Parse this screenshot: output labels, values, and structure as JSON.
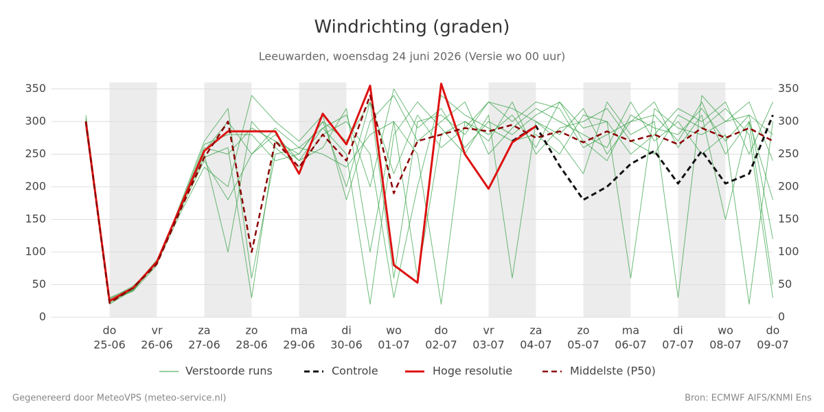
{
  "chart_data": {
    "type": "line",
    "title": "Windrichting (graden)",
    "subtitle": "Leeuwarden, woensdag 24 juni 2026 (Versie wo 00 uur)",
    "categories": [
      null,
      "25-06",
      null,
      "26-06",
      null,
      "27-06",
      null,
      "28-06",
      null,
      "29-06",
      null,
      "30-06",
      null,
      "01-07",
      null,
      "02-07",
      null,
      "03-07",
      null,
      "04-07",
      null,
      "05-07",
      null,
      "06-07",
      null,
      "07-07",
      null,
      "08-07",
      null,
      "09-07"
    ],
    "weekdays": [
      null,
      "do",
      null,
      "vr",
      null,
      "za",
      null,
      "zo",
      null,
      "ma",
      null,
      "di",
      null,
      "wo",
      null,
      "do",
      null,
      "vr",
      null,
      "za",
      null,
      "zo",
      null,
      "ma",
      null,
      "di",
      null,
      "wo",
      null,
      "do"
    ],
    "ylim": [
      0,
      360
    ],
    "yticks": [
      0,
      50,
      100,
      150,
      200,
      250,
      300,
      350
    ],
    "grid": true,
    "ensemble": {
      "name": "Verstoorde runs",
      "color": "#2e9e3e",
      "runs": [
        [
          300,
          20,
          42,
          85,
          170,
          260,
          250,
          290,
          270,
          250,
          300,
          200,
          330,
          60,
          300,
          310,
          280,
          330,
          320,
          300,
          280,
          320,
          250,
          300,
          330,
          260,
          310,
          150,
          300,
          50
        ],
        [
          290,
          30,
          45,
          88,
          165,
          240,
          180,
          250,
          280,
          240,
          260,
          320,
          100,
          300,
          250,
          20,
          300,
          280,
          310,
          260,
          330,
          290,
          300,
          250,
          280,
          320,
          300,
          330,
          250,
          330
        ],
        [
          310,
          25,
          40,
          80,
          175,
          270,
          320,
          60,
          250,
          260,
          290,
          250,
          20,
          280,
          330,
          290,
          250,
          310,
          60,
          300,
          270,
          220,
          330,
          280,
          300,
          30,
          340,
          300,
          310,
          120
        ],
        [
          295,
          28,
          48,
          82,
          160,
          230,
          200,
          340,
          300,
          270,
          310,
          180,
          300,
          340,
          270,
          300,
          330,
          250,
          290,
          320,
          300,
          280,
          260,
          330,
          270,
          300,
          250,
          280,
          20,
          300
        ],
        [
          305,
          22,
          44,
          86,
          168,
          250,
          100,
          300,
          260,
          230,
          280,
          300,
          250,
          30,
          200,
          340,
          310,
          290,
          270,
          280,
          250,
          310,
          300,
          60,
          320,
          290,
          280,
          300,
          330,
          240
        ],
        [
          300,
          26,
          46,
          84,
          172,
          265,
          280,
          280,
          240,
          250,
          300,
          270,
          330,
          220,
          310,
          260,
          290,
          330,
          300,
          330,
          320,
          260,
          280,
          300,
          310,
          270,
          330,
          250,
          300,
          180
        ],
        [
          298,
          24,
          43,
          83,
          166,
          255,
          300,
          250,
          290,
          260,
          250,
          230,
          280,
          300,
          60,
          280,
          300,
          270,
          330,
          250,
          290,
          300,
          320,
          270,
          250,
          310,
          290,
          320,
          280,
          30
        ],
        [
          302,
          27,
          41,
          87,
          170,
          245,
          260,
          30,
          270,
          240,
          290,
          310,
          200,
          350,
          290,
          320,
          260,
          300,
          280,
          310,
          330,
          270,
          240,
          310,
          290,
          280,
          320,
          270,
          310,
          280
        ]
      ]
    },
    "series": [
      {
        "name": "Controle",
        "color": "#111111",
        "dash": true,
        "width": 3,
        "values": [
          null,
          null,
          null,
          null,
          null,
          null,
          null,
          null,
          null,
          null,
          null,
          null,
          null,
          null,
          null,
          null,
          null,
          null,
          270,
          293,
          232,
          180,
          200,
          235,
          255,
          205,
          255,
          205,
          220,
          310
        ]
      },
      {
        "name": "Hoge resolutie",
        "color": "#dd1111",
        "dash": false,
        "width": 3,
        "values": [
          300,
          25,
          45,
          85,
          170,
          255,
          285,
          285,
          285,
          220,
          312,
          265,
          355,
          80,
          53,
          358,
          250,
          197,
          268,
          293,
          null,
          null,
          null,
          null,
          null,
          null,
          null,
          null,
          null,
          null
        ]
      },
      {
        "name": "Middelste (P50)",
        "color": "#8b0000",
        "dash": true,
        "width": 2.5,
        "values": [
          300,
          22,
          45,
          82,
          165,
          245,
          300,
          100,
          270,
          230,
          280,
          240,
          340,
          190,
          270,
          280,
          290,
          285,
          295,
          275,
          285,
          268,
          285,
          270,
          280,
          265,
          290,
          275,
          290,
          270
        ]
      }
    ],
    "footer_left": "Gegenereerd door MeteoVPS (meteo-service.nl)",
    "footer_right": "Bron: ECMWF AIFS/KNMI Ens"
  }
}
